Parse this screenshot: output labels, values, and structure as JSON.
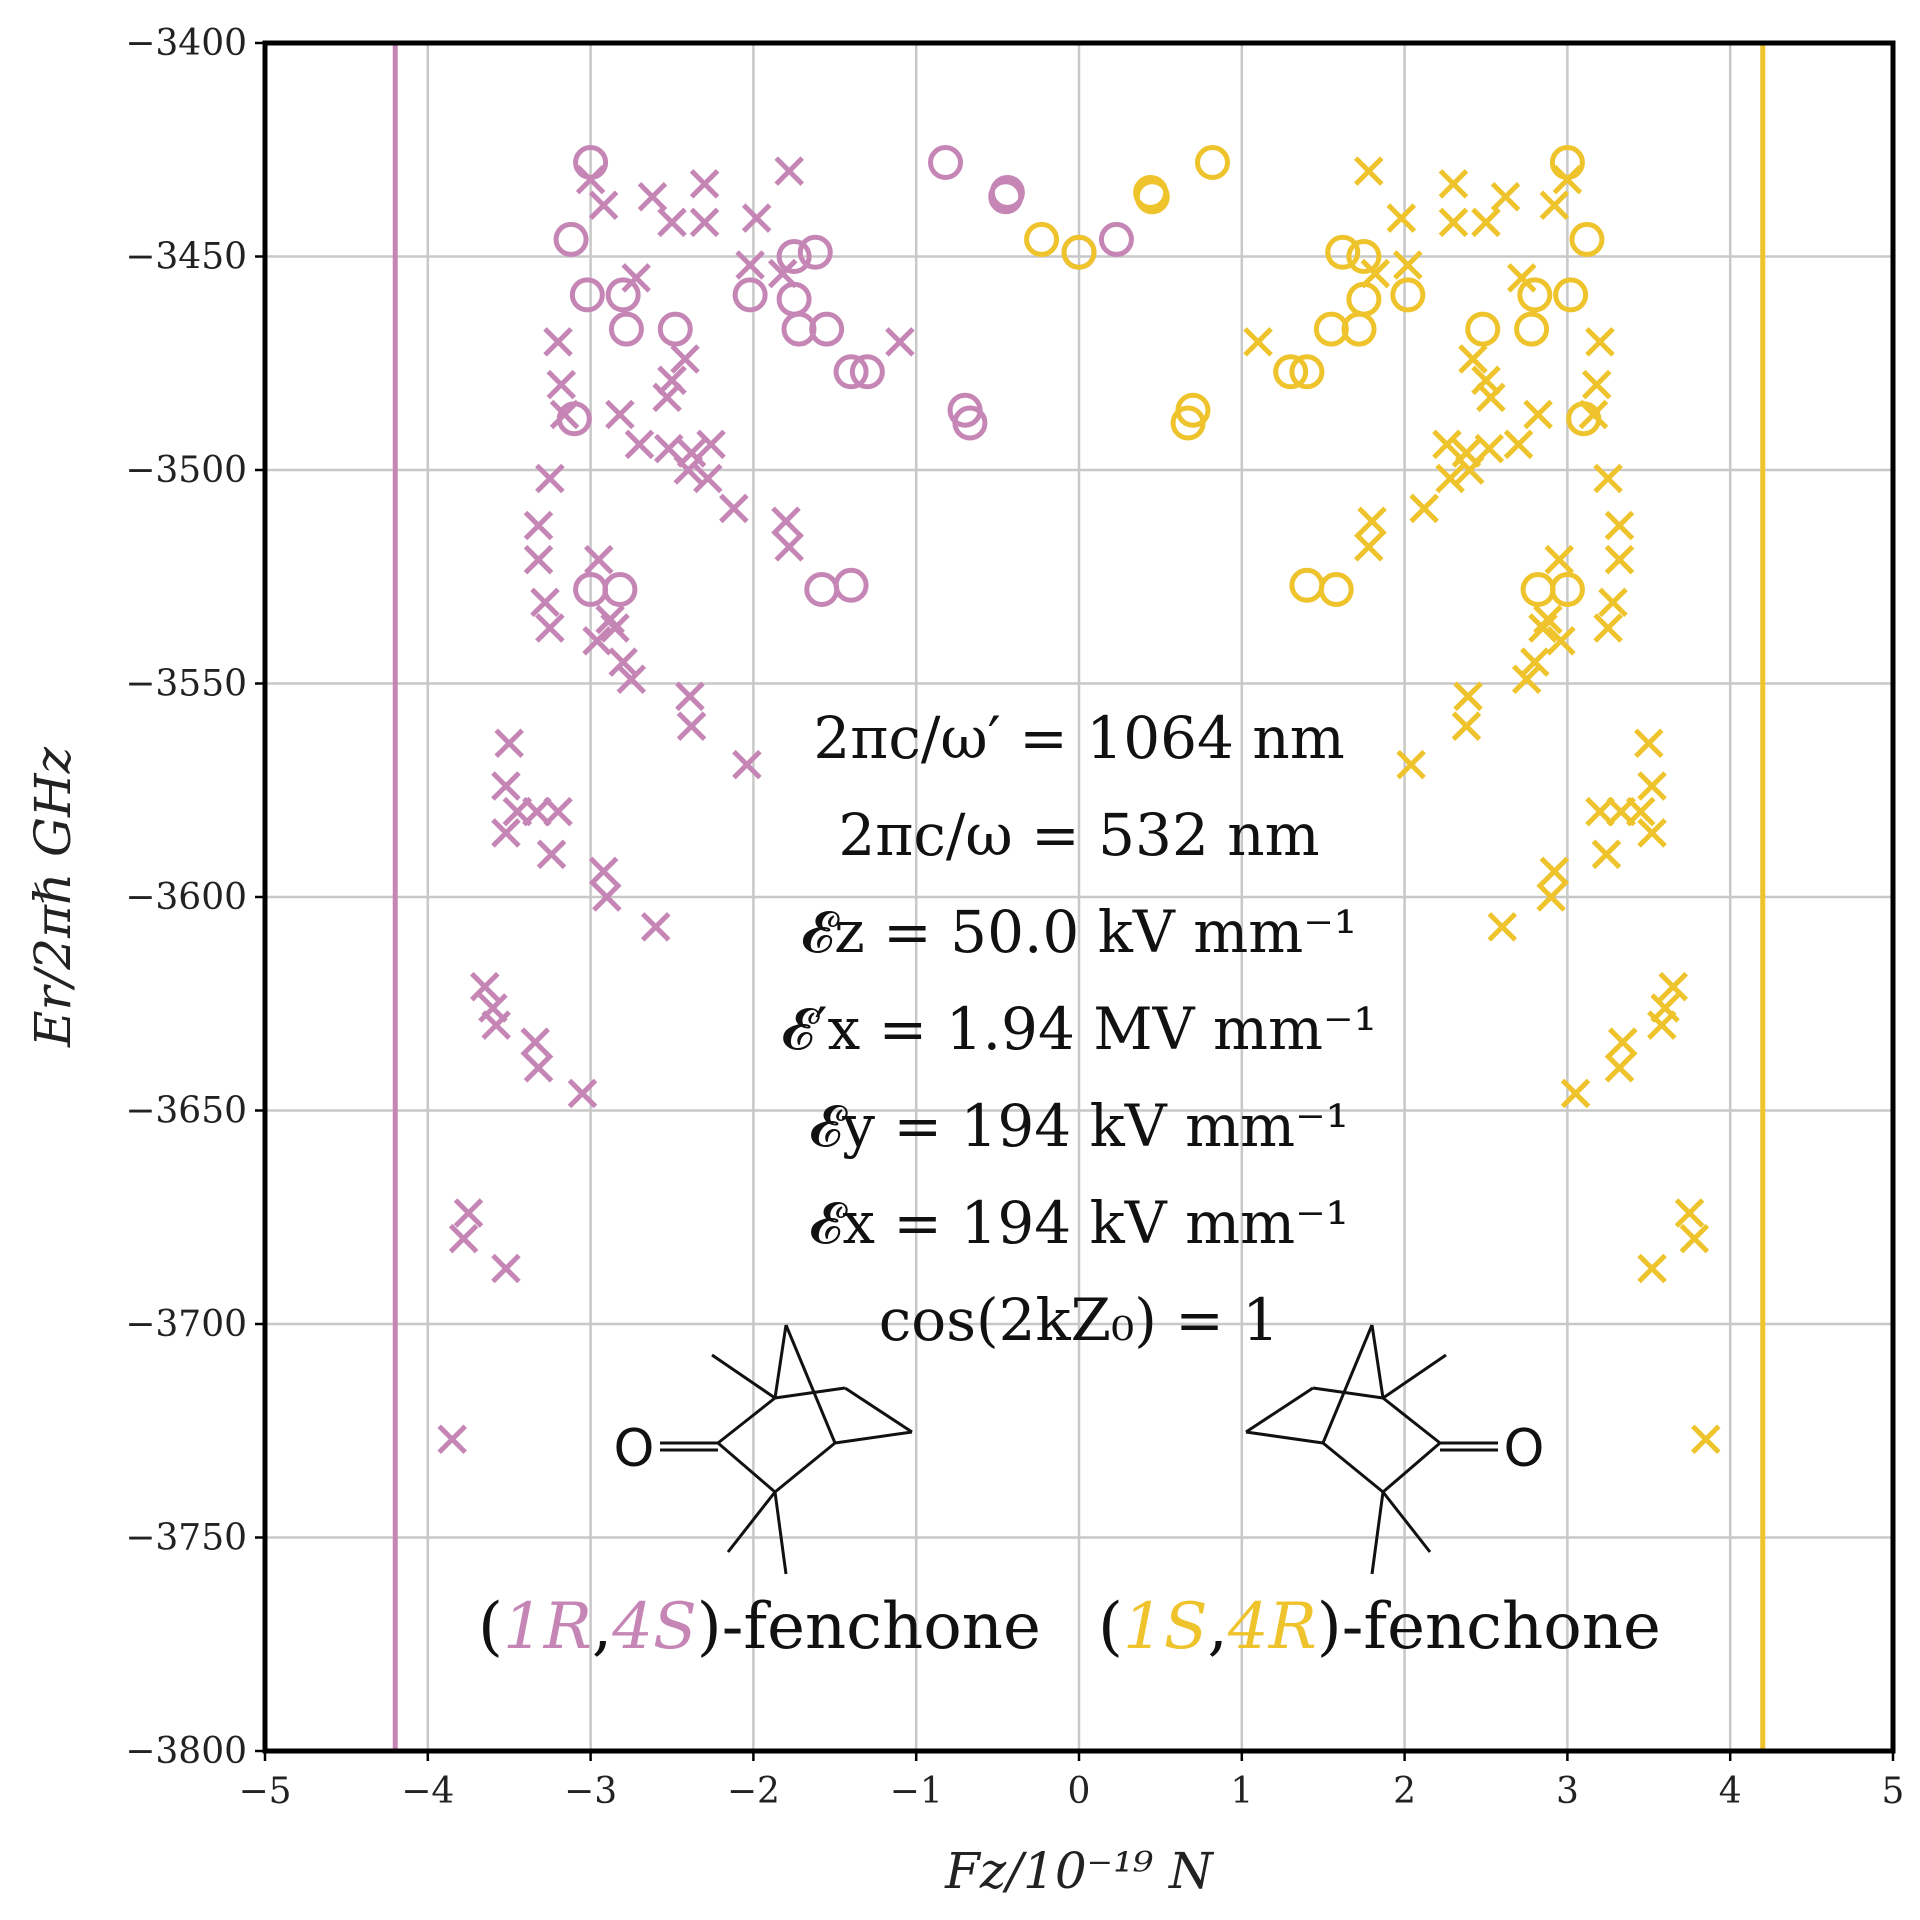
{
  "chart_data": {
    "type": "scatter",
    "xlabel": "Fz/10⁻¹⁹ N",
    "ylabel": "Er/2πℏ GHz",
    "xlim": [
      -5,
      5
    ],
    "ylim": [
      -3800,
      -3400
    ],
    "xticks": [
      "−5",
      "−4",
      "−3",
      "−2",
      "−1",
      "0",
      "1",
      "2",
      "3",
      "4",
      "5"
    ],
    "yticks": [
      "−3400",
      "−3450",
      "−3500",
      "−3550",
      "−3600",
      "−3650",
      "−3700",
      "−3750",
      "−3800"
    ],
    "grid": true,
    "colors": {
      "purple": "#c586b6",
      "yellow": "#eec32b"
    },
    "vertical_lines": [
      {
        "x": -4.2,
        "color": "purple"
      },
      {
        "x": 4.2,
        "color": "yellow"
      }
    ],
    "annotations": [
      "2πc/ω′ = 1064 nm",
      "2πc/ω = 532 nm",
      "𝓔z = 50.0 kV mm⁻¹",
      "𝓔′x = 1.94 MV mm⁻¹",
      "𝓔y = 194 kV mm⁻¹",
      "𝓔x = 194 kV mm⁻¹",
      "cos(2kZ₀) = 1"
    ],
    "molecule_labels": {
      "left": {
        "open": "(",
        "c1": "1R",
        "comma": ",",
        "c2": "4S",
        "rest": ")-fenchone"
      },
      "right": {
        "open": "(",
        "c1": "1S",
        "comma": ",",
        "c2": "4R",
        "rest": ")-fenchone"
      }
    },
    "atom_label": "O",
    "series": [
      {
        "color": "purple",
        "marker": "circle",
        "points": [
          [
            -3.0,
            -3428
          ],
          [
            -0.82,
            -3428
          ],
          [
            -0.45,
            -3436
          ],
          [
            -0.44,
            -3435
          ],
          [
            -3.12,
            -3446
          ],
          [
            0.23,
            -3446
          ],
          [
            0.0,
            -3449
          ],
          [
            -1.62,
            -3449
          ],
          [
            -1.75,
            -3450
          ],
          [
            -3.02,
            -3459
          ],
          [
            -2.8,
            -3459
          ],
          [
            -2.02,
            -3459
          ],
          [
            -1.75,
            -3460
          ],
          [
            -2.78,
            -3467
          ],
          [
            -2.48,
            -3467
          ],
          [
            -1.72,
            -3467
          ],
          [
            -1.55,
            -3467
          ],
          [
            -1.4,
            -3477
          ],
          [
            -1.3,
            -3477
          ],
          [
            -0.7,
            -3486
          ],
          [
            -0.67,
            -3489
          ],
          [
            -3.1,
            -3488
          ],
          [
            -3.0,
            -3528
          ],
          [
            -2.82,
            -3528
          ],
          [
            -1.58,
            -3528
          ],
          [
            -1.4,
            -3527
          ]
        ]
      },
      {
        "color": "purple",
        "marker": "x",
        "points": [
          [
            -2.3,
            -3433
          ],
          [
            -3.0,
            -3432
          ],
          [
            -1.78,
            -3430
          ],
          [
            -2.62,
            -3436
          ],
          [
            -2.92,
            -3438
          ],
          [
            -2.5,
            -3442
          ],
          [
            -2.3,
            -3442
          ],
          [
            -1.98,
            -3441
          ],
          [
            -2.02,
            -3452
          ],
          [
            -1.82,
            -3454
          ],
          [
            -2.72,
            -3455
          ],
          [
            -2.42,
            -3474
          ],
          [
            -3.2,
            -3470
          ],
          [
            -1.1,
            -3470
          ],
          [
            -2.5,
            -3479
          ],
          [
            -3.18,
            -3480
          ],
          [
            -2.53,
            -3483
          ],
          [
            -3.16,
            -3487
          ],
          [
            -2.82,
            -3487
          ],
          [
            -2.7,
            -3494
          ],
          [
            -2.52,
            -3495
          ],
          [
            -2.38,
            -3496
          ],
          [
            -2.26,
            -3494
          ],
          [
            -2.4,
            -3500
          ],
          [
            -3.25,
            -3502
          ],
          [
            -2.28,
            -3502
          ],
          [
            -2.12,
            -3509
          ],
          [
            -1.8,
            -3512
          ],
          [
            -1.78,
            -3518
          ],
          [
            -3.32,
            -3513
          ],
          [
            -3.32,
            -3521
          ],
          [
            -2.95,
            -3521
          ],
          [
            -3.28,
            -3531
          ],
          [
            -3.25,
            -3537
          ],
          [
            -2.88,
            -3535
          ],
          [
            -2.96,
            -3540
          ],
          [
            -2.85,
            -3537
          ],
          [
            -2.8,
            -3545
          ],
          [
            -2.75,
            -3549
          ],
          [
            -2.39,
            -3553
          ],
          [
            -2.38,
            -3560
          ],
          [
            -2.04,
            -3569
          ],
          [
            -3.5,
            -3564
          ],
          [
            -3.52,
            -3574
          ],
          [
            -3.45,
            -3580
          ],
          [
            -3.33,
            -3580
          ],
          [
            -3.2,
            -3580
          ],
          [
            -3.52,
            -3585
          ],
          [
            -3.24,
            -3590
          ],
          [
            -2.92,
            -3594
          ],
          [
            -2.9,
            -3600
          ],
          [
            -2.6,
            -3607
          ],
          [
            -3.65,
            -3621
          ],
          [
            -3.6,
            -3626
          ],
          [
            -3.58,
            -3630
          ],
          [
            -3.34,
            -3634
          ],
          [
            -3.32,
            -3640
          ],
          [
            -3.05,
            -3646
          ],
          [
            -3.75,
            -3674
          ],
          [
            -3.78,
            -3680
          ],
          [
            -3.52,
            -3687
          ],
          [
            -3.85,
            -3727
          ]
        ]
      },
      {
        "color": "yellow",
        "marker": "circle",
        "points": [
          [
            3.0,
            -3428
          ],
          [
            0.82,
            -3428
          ],
          [
            0.45,
            -3436
          ],
          [
            0.44,
            -3435
          ],
          [
            3.12,
            -3446
          ],
          [
            -0.23,
            -3446
          ],
          [
            0.0,
            -3449
          ],
          [
            1.62,
            -3449
          ],
          [
            1.75,
            -3450
          ],
          [
            3.02,
            -3459
          ],
          [
            2.8,
            -3459
          ],
          [
            2.02,
            -3459
          ],
          [
            1.75,
            -3460
          ],
          [
            2.78,
            -3467
          ],
          [
            2.48,
            -3467
          ],
          [
            1.72,
            -3467
          ],
          [
            1.55,
            -3467
          ],
          [
            1.4,
            -3477
          ],
          [
            1.3,
            -3477
          ],
          [
            0.7,
            -3486
          ],
          [
            0.67,
            -3489
          ],
          [
            3.1,
            -3488
          ],
          [
            3.0,
            -3528
          ],
          [
            2.82,
            -3528
          ],
          [
            1.58,
            -3528
          ],
          [
            1.4,
            -3527
          ]
        ]
      },
      {
        "color": "yellow",
        "marker": "x",
        "points": [
          [
            2.3,
            -3433
          ],
          [
            3.0,
            -3432
          ],
          [
            1.78,
            -3430
          ],
          [
            2.62,
            -3436
          ],
          [
            2.92,
            -3438
          ],
          [
            2.5,
            -3442
          ],
          [
            2.3,
            -3442
          ],
          [
            1.98,
            -3441
          ],
          [
            2.02,
            -3452
          ],
          [
            1.82,
            -3454
          ],
          [
            2.72,
            -3455
          ],
          [
            2.42,
            -3474
          ],
          [
            3.2,
            -3470
          ],
          [
            1.1,
            -3470
          ],
          [
            2.5,
            -3479
          ],
          [
            3.18,
            -3480
          ],
          [
            2.53,
            -3483
          ],
          [
            3.16,
            -3487
          ],
          [
            2.82,
            -3487
          ],
          [
            2.7,
            -3494
          ],
          [
            2.52,
            -3495
          ],
          [
            2.38,
            -3496
          ],
          [
            2.26,
            -3494
          ],
          [
            2.4,
            -3500
          ],
          [
            3.25,
            -3502
          ],
          [
            2.28,
            -3502
          ],
          [
            2.12,
            -3509
          ],
          [
            1.8,
            -3512
          ],
          [
            1.78,
            -3518
          ],
          [
            3.32,
            -3513
          ],
          [
            3.32,
            -3521
          ],
          [
            2.95,
            -3521
          ],
          [
            3.28,
            -3531
          ],
          [
            3.25,
            -3537
          ],
          [
            2.88,
            -3535
          ],
          [
            2.96,
            -3540
          ],
          [
            2.85,
            -3537
          ],
          [
            2.8,
            -3545
          ],
          [
            2.75,
            -3549
          ],
          [
            2.39,
            -3553
          ],
          [
            2.38,
            -3560
          ],
          [
            2.04,
            -3569
          ],
          [
            3.5,
            -3564
          ],
          [
            3.52,
            -3574
          ],
          [
            3.45,
            -3580
          ],
          [
            3.33,
            -3580
          ],
          [
            3.2,
            -3580
          ],
          [
            3.52,
            -3585
          ],
          [
            3.24,
            -3590
          ],
          [
            2.92,
            -3594
          ],
          [
            2.9,
            -3600
          ],
          [
            2.6,
            -3607
          ],
          [
            3.65,
            -3621
          ],
          [
            3.6,
            -3626
          ],
          [
            3.58,
            -3630
          ],
          [
            3.34,
            -3634
          ],
          [
            3.32,
            -3640
          ],
          [
            3.05,
            -3646
          ],
          [
            3.75,
            -3674
          ],
          [
            3.78,
            -3680
          ],
          [
            3.52,
            -3687
          ],
          [
            3.85,
            -3727
          ]
        ]
      }
    ]
  }
}
